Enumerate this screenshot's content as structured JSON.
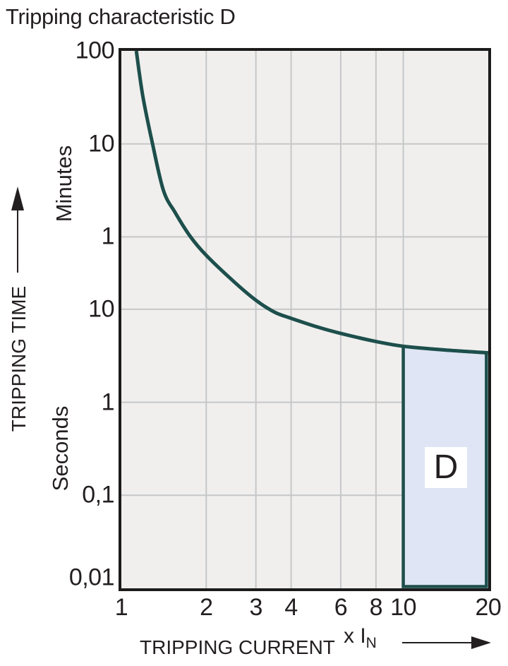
{
  "title": "Tripping characteristic D",
  "chart_data": {
    "type": "line",
    "title": "Tripping characteristic D",
    "x_axis": {
      "label": "TRIPPING CURRENT",
      "unit_prefix": "x I",
      "unit_sub": "N",
      "scale": "log",
      "range": [
        1,
        20
      ],
      "ticks": [
        {
          "label": "1",
          "value": 1
        },
        {
          "label": "2",
          "value": 2
        },
        {
          "label": "3",
          "value": 3
        },
        {
          "label": "4",
          "value": 4
        },
        {
          "label": "6",
          "value": 6
        },
        {
          "label": "8",
          "value": 8
        },
        {
          "label": "10",
          "value": 10
        },
        {
          "label": "20",
          "value": 20
        }
      ]
    },
    "y_axis": {
      "label": "TRIPPING TIME",
      "scale": "log",
      "range_seconds": [
        0.01,
        6000
      ],
      "units": {
        "upper": "Minutes",
        "lower": "Seconds"
      },
      "ticks": [
        {
          "label": "100",
          "seconds": 6000,
          "unit": "minutes"
        },
        {
          "label": "10",
          "seconds": 600,
          "unit": "minutes"
        },
        {
          "label": "1",
          "seconds": 60,
          "unit": "minutes"
        },
        {
          "label": "10",
          "seconds": 10,
          "unit": "seconds"
        },
        {
          "label": "1",
          "seconds": 1,
          "unit": "seconds"
        },
        {
          "label": "0,1",
          "seconds": 0.1,
          "unit": "seconds"
        },
        {
          "label": "0,01",
          "seconds": 0.01,
          "unit": "seconds"
        }
      ]
    },
    "grid": {
      "x_lines": [
        2,
        3,
        4,
        6,
        8,
        10
      ],
      "y_lines_seconds": [
        600,
        60,
        10,
        1,
        0.1
      ]
    },
    "series": [
      {
        "name": "trip-curve",
        "points": [
          [
            1.13,
            6000
          ],
          [
            1.19,
            2000
          ],
          [
            1.29,
            600
          ],
          [
            1.41,
            190
          ],
          [
            1.55,
            110
          ],
          [
            1.76,
            60
          ],
          [
            2.0,
            38
          ],
          [
            2.5,
            20
          ],
          [
            3.0,
            12.5
          ],
          [
            3.5,
            9.3
          ],
          [
            4.0,
            8.0
          ],
          [
            5.0,
            6.4
          ],
          [
            6.0,
            5.5
          ],
          [
            8.0,
            4.5
          ],
          [
            10.0,
            4.0
          ],
          [
            14.0,
            3.65
          ],
          [
            20.0,
            3.4
          ]
        ]
      }
    ],
    "region": {
      "label": "D",
      "x_range": [
        10,
        20
      ],
      "bottom_seconds": 0.01,
      "top_follows_curve": true
    },
    "colors": {
      "curve": "#1d4f4c",
      "region_fill": "#dfe5f4",
      "plot_bg": "#f0efee",
      "grid": "#c5c7c9",
      "frame": "#1b1b1b",
      "text": "#231f20"
    }
  }
}
